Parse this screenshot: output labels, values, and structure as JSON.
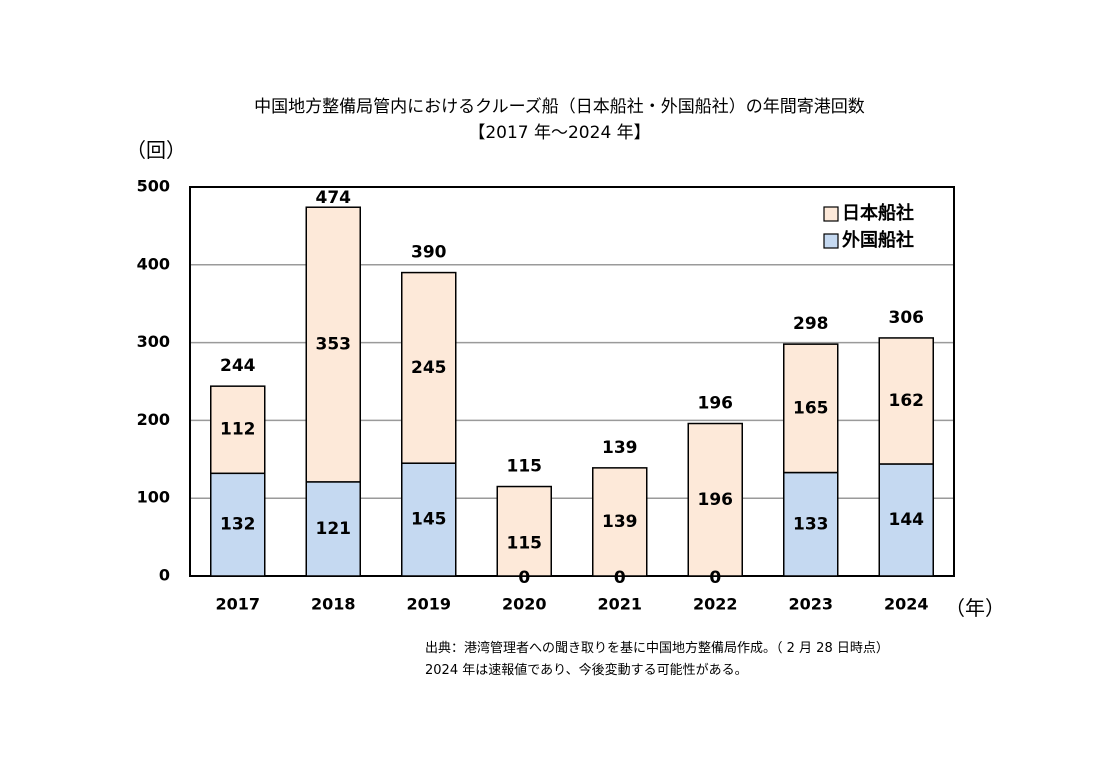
{
  "title_line1": "中国地方整備局管内におけるクルーズ船（日本船社・外国船社）の年間寄港回数",
  "title_line2": "【2017 年～2024 年】",
  "y_unit": "（回）",
  "x_unit": "（年）",
  "source_line1": "出典：港湾管理者への聞き取りを基に中国地方整備局作成。（ 2 月 28 日時点）",
  "source_line2": "2024 年は速報値であり、今後変動する可能性がある。",
  "chart_data": {
    "type": "bar",
    "stacked": true,
    "categories": [
      "2017",
      "2018",
      "2019",
      "2020",
      "2021",
      "2022",
      "2023",
      "2024"
    ],
    "series": [
      {
        "name": "外国船社",
        "values": [
          132,
          121,
          145,
          0,
          0,
          0,
          133,
          144
        ],
        "color": "#c5d9f1"
      },
      {
        "name": "日本船社",
        "values": [
          112,
          353,
          245,
          115,
          139,
          196,
          165,
          162
        ],
        "color": "#fde9d9"
      }
    ],
    "totals": [
      244,
      474,
      390,
      115,
      139,
      196,
      298,
      306
    ],
    "ylim": [
      0,
      500
    ],
    "yticks": [
      0,
      100,
      200,
      300,
      400,
      500
    ],
    "grid": true,
    "legend_position": "top-right",
    "legend_order": [
      "日本船社",
      "外国船社"
    ]
  }
}
